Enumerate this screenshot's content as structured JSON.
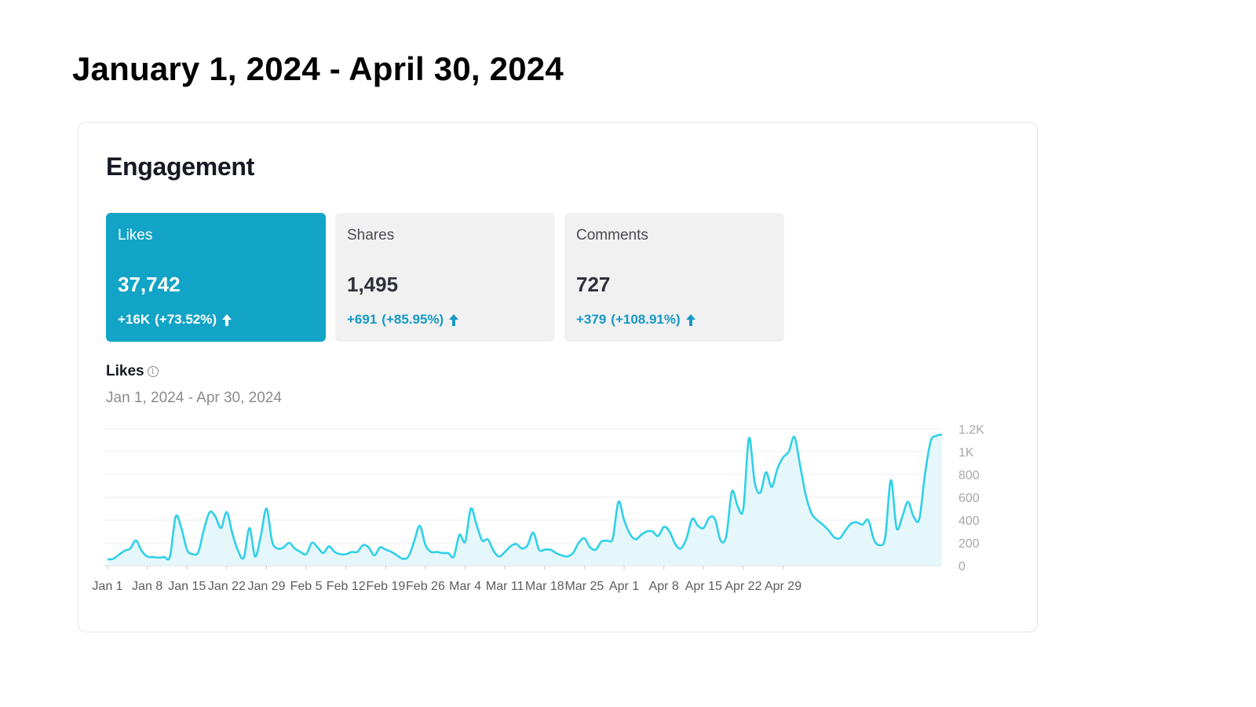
{
  "page": {
    "title": "January 1, 2024 - April 30, 2024"
  },
  "engagement": {
    "title": "Engagement",
    "metrics": [
      {
        "label": "Likes",
        "value": "37,742",
        "change": "+16K",
        "change_pct": "(+73.52%)",
        "active": true,
        "icon": "arrow-up-icon"
      },
      {
        "label": "Shares",
        "value": "1,495",
        "change": "+691",
        "change_pct": "(+85.95%)",
        "active": false,
        "icon": "arrow-up-icon"
      },
      {
        "label": "Comments",
        "value": "727",
        "change": "+379",
        "change_pct": "(+108.91%)",
        "active": false,
        "icon": "arrow-up-icon"
      }
    ],
    "chart_label": "Likes",
    "chart_info_icon": "info-icon",
    "chart_range": "Jan 1, 2024 - Apr 30, 2024"
  },
  "colors": {
    "accent": "#12a4c6",
    "line": "#2fd0e8",
    "area": "#e6f7fb",
    "change_text": "#1699c4"
  },
  "chart_data": {
    "type": "area",
    "xlabel": "",
    "ylabel": "",
    "ylim": [
      0,
      1200
    ],
    "y_ticks": [
      "0",
      "200",
      "400",
      "600",
      "800",
      "1K",
      "1.2K"
    ],
    "y_tick_values": [
      0,
      200,
      400,
      600,
      800,
      1000,
      1200
    ],
    "x_ticks": [
      "Jan 1",
      "Jan 8",
      "Jan 15",
      "Jan 22",
      "Jan 29",
      "Feb 5",
      "Feb 12",
      "Feb 19",
      "Feb 26",
      "Mar 4",
      "Mar 11",
      "Mar 18",
      "Mar 25",
      "Apr 1",
      "Apr 8",
      "Apr 15",
      "Apr 22",
      "Apr 29"
    ],
    "grid": true,
    "axis_position": "right",
    "series": [
      {
        "values": [
          55,
          60,
          95,
          130,
          150,
          220,
          130,
          80,
          75,
          70,
          75,
          80,
          430,
          330,
          140,
          100,
          120,
          320,
          470,
          430,
          330,
          470,
          280,
          130,
          70,
          330,
          80,
          260,
          500,
          210,
          150,
          160,
          200,
          150,
          120,
          100,
          200,
          160,
          110,
          170,
          120,
          100,
          100,
          120,
          120,
          180,
          160,
          90,
          160,
          140,
          120,
          90,
          60,
          80,
          210,
          350,
          180,
          120,
          120,
          110,
          110,
          80,
          270,
          210,
          500,
          360,
          220,
          230,
          130,
          80,
          120,
          170,
          190,
          150,
          180,
          290,
          140,
          140,
          140,
          110,
          90,
          80,
          110,
          200,
          240,
          160,
          140,
          210,
          220,
          240,
          560,
          400,
          280,
          230,
          270,
          300,
          300,
          260,
          340,
          300,
          190,
          150,
          240,
          410,
          350,
          330,
          420,
          410,
          220,
          260,
          650,
          520,
          500,
          1120,
          730,
          640,
          820,
          690,
          850,
          950,
          1000,
          1130,
          880,
          620,
          460,
          400,
          360,
          310,
          250,
          240,
          310,
          370,
          380,
          360,
          400,
          230,
          180,
          250,
          750,
          330,
          430,
          560,
          430,
          410,
          800,
          1090,
          1140,
          1150
        ]
      }
    ]
  }
}
